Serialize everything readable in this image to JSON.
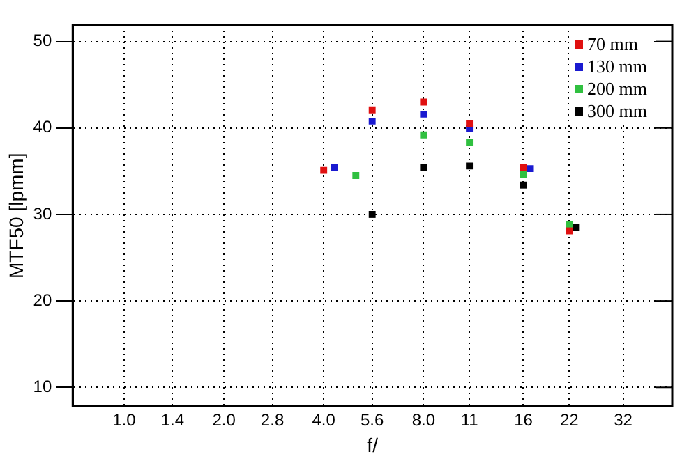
{
  "chart_data": {
    "type": "scatter",
    "xlabel": "f/",
    "ylabel": "MTF50 [lpmm]",
    "log": "x",
    "xlim": [
      0.7,
      45
    ],
    "ylim": [
      7.8,
      51.9
    ],
    "xticks": [
      {
        "value": 1,
        "label": "1.0"
      },
      1.4,
      {
        "value": 2,
        "label": "2.0"
      },
      2.8,
      {
        "value": 4,
        "label": "4.0"
      },
      5.6,
      {
        "value": 8,
        "label": "8.0"
      },
      11,
      16,
      22,
      32
    ],
    "yticks": [
      10,
      20,
      30,
      40,
      50
    ],
    "grid": true,
    "legend": "top right",
    "marker": "square",
    "series": [
      {
        "name": "70 mm",
        "color": "#e01010",
        "x": [
          4,
          5.6,
          8,
          11,
          16,
          22
        ],
        "values": [
          35.1,
          42.1,
          43.0,
          40.5,
          35.4,
          28.1
        ]
      },
      {
        "name": "130 mm",
        "color": "#1a1ad0",
        "x": [
          4.3,
          5.6,
          8,
          11,
          16.8
        ],
        "values": [
          35.4,
          40.8,
          41.6,
          39.9,
          35.3
        ]
      },
      {
        "name": "200 mm",
        "color": "#30c040",
        "x": [
          5.0,
          8,
          11,
          16,
          22
        ],
        "values": [
          34.5,
          39.2,
          38.3,
          34.6,
          28.8
        ]
      },
      {
        "name": "300 mm",
        "color": "#000000",
        "x": [
          5.6,
          8,
          11,
          16,
          23
        ],
        "values": [
          30.0,
          35.4,
          35.6,
          33.4,
          28.5
        ]
      }
    ]
  }
}
